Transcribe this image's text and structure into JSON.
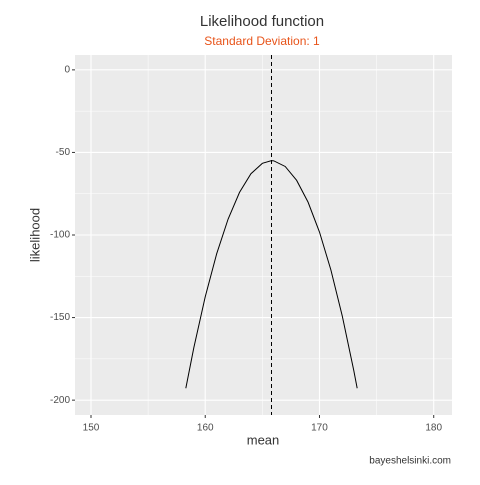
{
  "chart_data": {
    "type": "line",
    "title": "Likelihood function",
    "subtitle": "Standard Deviation: 1",
    "xlabel": "mean",
    "ylabel": "likelihood",
    "caption": "bayeshelsinki.com",
    "x": [
      158.3,
      159,
      160,
      161,
      162,
      163,
      164,
      165,
      165.8,
      166,
      167,
      168,
      169,
      170,
      171,
      172,
      173,
      173.3
    ],
    "series": [
      {
        "name": "likelihood",
        "color": "#000000",
        "values": [
          -192.8,
          -168.3,
          -137.4,
          -111.4,
          -90.4,
          -74.2,
          -62.9,
          -56.6,
          -55,
          -55.1,
          -58.5,
          -66.9,
          -80.1,
          -98.2,
          -121.2,
          -149.2,
          -182,
          -192.8
        ]
      }
    ],
    "vline": 165.8,
    "xlim": [
      148.6,
      181.6
    ],
    "xticks": [
      150,
      160,
      170,
      180
    ],
    "ylim": [
      -209,
      9
    ],
    "yticks": [
      0,
      -50,
      -100,
      -150,
      -200
    ],
    "grid": true,
    "minor_grid": true,
    "subtitle_color": "#e8541a"
  }
}
